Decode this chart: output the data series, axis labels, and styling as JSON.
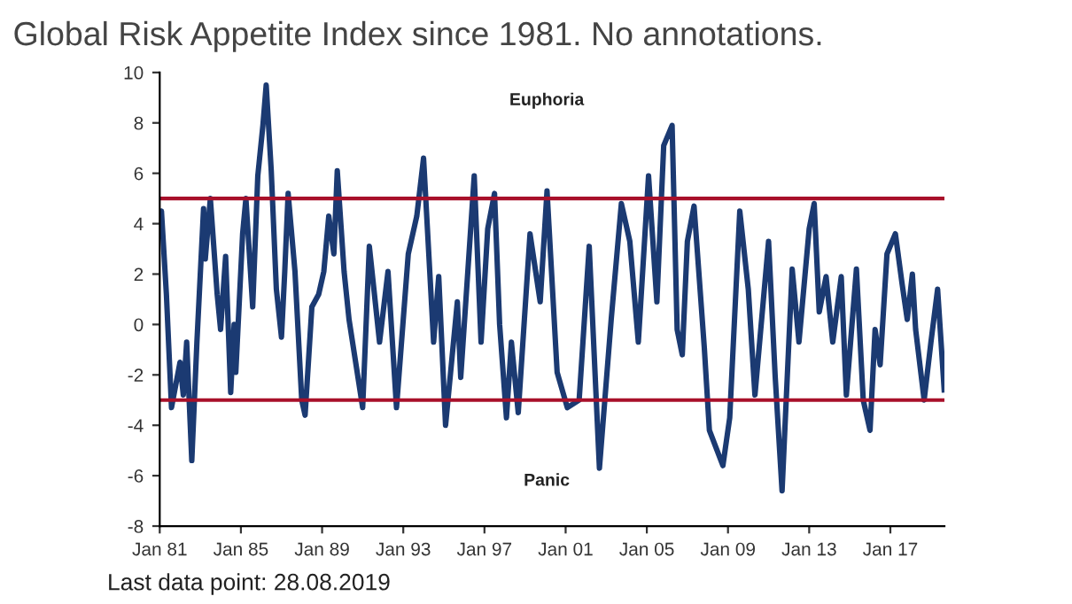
{
  "chart_data": {
    "type": "line",
    "title": "Global Risk Appetite Index since 1981. No annotations.",
    "annotations": [
      "Euphoria",
      "Panic",
      "Last data point: 28.08.2019"
    ],
    "x": [
      "1981-01",
      "1981-02",
      "1981-05",
      "1981-08",
      "1982-01",
      "1982-03",
      "1982-05",
      "1982-08",
      "1982-11",
      "1983-03",
      "1983-04",
      "1983-07",
      "1983-11",
      "1984-01",
      "1984-04",
      "1984-07",
      "1984-09",
      "1984-10",
      "1985-02",
      "1985-04",
      "1985-08",
      "1985-11",
      "1986-02",
      "1986-04",
      "1986-07",
      "1986-10",
      "1987-01",
      "1987-03",
      "1987-05",
      "1987-09",
      "1988-01",
      "1988-03",
      "1988-07",
      "1988-11",
      "1989-02",
      "1989-05",
      "1989-08",
      "1989-10",
      "1990-02",
      "1990-05",
      "1991-01",
      "1991-05",
      "1991-11",
      "1992-04",
      "1992-09",
      "1993-04",
      "1993-09",
      "1994-01",
      "1994-07",
      "1994-10",
      "1995-02",
      "1995-09",
      "1995-11",
      "1996-07",
      "1996-11",
      "1997-03",
      "1997-07",
      "1997-10",
      "1998-02",
      "1998-05",
      "1998-09",
      "1999-04",
      "1999-10",
      "2000-02",
      "2000-08",
      "2001-02",
      "2001-09",
      "2002-03",
      "2002-09",
      "2003-04",
      "2003-10",
      "2004-03",
      "2004-08",
      "2005-02",
      "2005-07",
      "2005-11",
      "2006-04",
      "2006-07",
      "2006-10",
      "2007-01",
      "2007-05",
      "2007-11",
      "2008-02",
      "2008-10",
      "2009-02",
      "2009-08",
      "2010-01",
      "2010-05",
      "2011-01",
      "2011-05",
      "2011-09",
      "2012-03",
      "2012-07",
      "2013-01",
      "2013-04",
      "2013-07",
      "2013-11",
      "2014-03",
      "2014-08",
      "2014-11",
      "2015-05",
      "2015-09",
      "2016-01",
      "2016-04",
      "2016-07",
      "2016-11",
      "2017-04",
      "2017-08",
      "2017-11",
      "2018-02",
      "2018-04",
      "2018-09",
      "2019-01",
      "2019-05",
      "2019-08-28"
    ],
    "series": [
      {
        "color": "#1b3a72",
        "values": [
          4.0,
          4.5,
          1.2,
          -3.3,
          -1.5,
          -2.8,
          -0.7,
          -5.4,
          -0.7,
          4.6,
          2.6,
          5.0,
          1.2,
          -0.2,
          2.7,
          -2.7,
          0.0,
          -1.9,
          3.6,
          5.0,
          0.7,
          5.9,
          7.9,
          9.5,
          6.1,
          1.4,
          -0.5,
          2.1,
          5.2,
          2.1,
          -3.0,
          -3.6,
          0.7,
          1.2,
          2.1,
          4.3,
          2.8,
          6.1,
          2.1,
          0.2,
          -3.3,
          3.1,
          -0.7,
          2.1,
          -3.3,
          2.8,
          4.3,
          6.6,
          -0.7,
          1.9,
          -4.0,
          0.9,
          -2.1,
          5.9,
          -0.7,
          3.8,
          5.2,
          0.0,
          -3.7,
          -0.7,
          -3.5,
          3.6,
          0.9,
          5.3,
          -1.9,
          -3.3,
          -3.0,
          3.1,
          -5.7,
          0.2,
          4.8,
          3.3,
          -0.7,
          5.9,
          0.9,
          7.1,
          7.9,
          -0.2,
          -1.2,
          3.3,
          4.7,
          -0.9,
          -4.2,
          -5.6,
          -3.7,
          4.5,
          1.4,
          -2.8,
          3.3,
          -2.1,
          -6.6,
          2.2,
          -0.7,
          3.8,
          4.8,
          0.5,
          1.9,
          -0.7,
          1.9,
          -2.8,
          2.2,
          -3.0,
          -4.2,
          -0.2,
          -1.6,
          2.8,
          3.6,
          1.6,
          0.2,
          2.0,
          -0.2,
          -3.0,
          -0.7,
          1.4,
          -2.6
        ]
      }
    ],
    "xlim": [
      "1981-01",
      "2019-09"
    ],
    "xticks": [
      {
        "value": "1981-01",
        "label": "Jan 81"
      },
      {
        "value": "1985-01",
        "label": "Jan 85"
      },
      {
        "value": "1989-01",
        "label": "Jan 89"
      },
      {
        "value": "1993-01",
        "label": "Jan 93"
      },
      {
        "value": "1997-01",
        "label": "Jan 97"
      },
      {
        "value": "2001-01",
        "label": "Jan 01"
      },
      {
        "value": "2005-01",
        "label": "Jan 05"
      },
      {
        "value": "2009-01",
        "label": "Jan 09"
      },
      {
        "value": "2013-01",
        "label": "Jan 13"
      },
      {
        "value": "2017-01",
        "label": "Jan 17"
      }
    ],
    "ylim": [
      -8,
      10
    ],
    "yticks": [
      -8,
      -6,
      -4,
      -2,
      0,
      2,
      4,
      6,
      8,
      10
    ],
    "ref_lines": [
      {
        "axis": "y",
        "value": 5,
        "color": "#a8102a"
      },
      {
        "axis": "y",
        "value": -3,
        "color": "#a8102a"
      }
    ],
    "grid": false,
    "legend": false,
    "marker": "none",
    "line_style": "solid"
  }
}
